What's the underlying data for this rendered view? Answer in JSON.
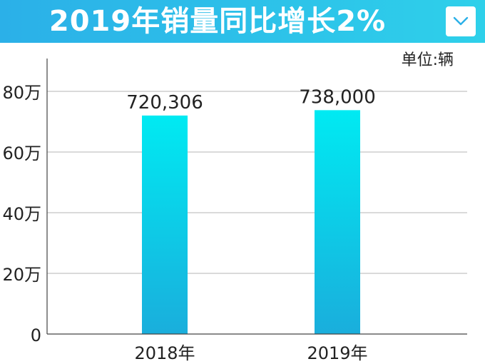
{
  "header": {
    "title": "2019年销量同比增长2%",
    "dropdown_icon": "chevron-down-icon"
  },
  "colors": {
    "title_bar_start": "#2bb0e8",
    "title_bar_end": "#2ed0ea",
    "bar_top": "#00eaf2",
    "bar_bottom": "#1aaedc",
    "gridline": "#b5b5b5",
    "axis": "#444444"
  },
  "chart_data": {
    "type": "bar",
    "title": "2019年销量同比增长2%",
    "unit_label": "单位:辆",
    "categories": [
      "2018年",
      "2019年"
    ],
    "values": [
      720306,
      738000
    ],
    "data_labels": [
      "720,306",
      "738,000"
    ],
    "yticks": [
      {
        "value": 0,
        "label": "0"
      },
      {
        "value": 200000,
        "label": "20万"
      },
      {
        "value": 400000,
        "label": "40万"
      },
      {
        "value": 600000,
        "label": "60万"
      },
      {
        "value": 800000,
        "label": "80万"
      }
    ],
    "ylim": [
      0,
      900000
    ],
    "grid": true,
    "legend": "none"
  }
}
